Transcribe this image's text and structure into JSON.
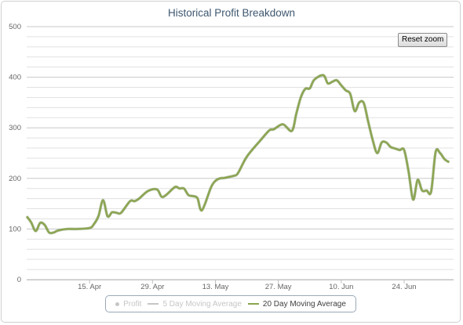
{
  "chart_data": {
    "type": "line",
    "title": "Historical Profit Breakdown",
    "xlabel": "",
    "ylabel": "",
    "ylim": [
      0,
      500
    ],
    "xlim": [
      "2013-04-01",
      "2013-07-05"
    ],
    "yticks": [
      0,
      100,
      200,
      300,
      400,
      500
    ],
    "xticks": [
      {
        "label": "15. Apr",
        "date": "2013-04-15"
      },
      {
        "label": "29. Apr",
        "date": "2013-04-29"
      },
      {
        "label": "13. May",
        "date": "2013-05-13"
      },
      {
        "label": "27. May",
        "date": "2013-05-27"
      },
      {
        "label": "10. Jun",
        "date": "2013-06-10"
      },
      {
        "label": "24. Jun",
        "date": "2013-06-24"
      }
    ],
    "grid": true,
    "legend_position": "bottom-center",
    "series": [
      {
        "name": "Profit",
        "visible": false,
        "color": "#c6c6c6",
        "symbol": "dot",
        "x": [],
        "y": []
      },
      {
        "name": "5 Day Moving Average",
        "visible": false,
        "color": "#c6c6c6",
        "symbol": "line",
        "x": [],
        "y": []
      },
      {
        "name": "20 Day Moving Average",
        "visible": true,
        "color": "#89a54e",
        "symbol": "line",
        "x": [
          "2013-04-01",
          "2013-04-02",
          "2013-04-03",
          "2013-04-04",
          "2013-04-05",
          "2013-04-06",
          "2013-04-07",
          "2013-04-08",
          "2013-04-10",
          "2013-04-12",
          "2013-04-15",
          "2013-04-16",
          "2013-04-17",
          "2013-04-18",
          "2013-04-19",
          "2013-04-20",
          "2013-04-21",
          "2013-04-22",
          "2013-04-24",
          "2013-04-25",
          "2013-04-26",
          "2013-04-28",
          "2013-04-30",
          "2013-05-01",
          "2013-05-02",
          "2013-05-04",
          "2013-05-05",
          "2013-05-06",
          "2013-05-07",
          "2013-05-08",
          "2013-05-09",
          "2013-05-10",
          "2013-05-12",
          "2013-05-13",
          "2013-05-14",
          "2013-05-15",
          "2013-05-16",
          "2013-05-17",
          "2013-05-18",
          "2013-05-20",
          "2013-05-23",
          "2013-05-25",
          "2013-05-26",
          "2013-05-28",
          "2013-05-30",
          "2013-05-31",
          "2013-06-01",
          "2013-06-02",
          "2013-06-03",
          "2013-06-04",
          "2013-06-06",
          "2013-06-07",
          "2013-06-08",
          "2013-06-09",
          "2013-06-10",
          "2013-06-11",
          "2013-06-12",
          "2013-06-13",
          "2013-06-14",
          "2013-06-15",
          "2013-06-16",
          "2013-06-17",
          "2013-06-18",
          "2013-06-19",
          "2013-06-20",
          "2013-06-21",
          "2013-06-22",
          "2013-06-23",
          "2013-06-24",
          "2013-06-25",
          "2013-06-26",
          "2013-06-27",
          "2013-06-28",
          "2013-06-29",
          "2013-06-30",
          "2013-07-01",
          "2013-07-02",
          "2013-07-03",
          "2013-07-04"
        ],
        "y": [
          125,
          113,
          96,
          112,
          108,
          93,
          93,
          97,
          100,
          100,
          102,
          110,
          126,
          157,
          125,
          133,
          132,
          132,
          155,
          155,
          160,
          175,
          178,
          164,
          167,
          183,
          180,
          180,
          167,
          165,
          161,
          137,
          182,
          195,
          200,
          201,
          203,
          205,
          210,
          243,
          275,
          295,
          297,
          307,
          294,
          328,
          360,
          377,
          378,
          395,
          404,
          388,
          391,
          394,
          384,
          374,
          367,
          333,
          350,
          349,
          312,
          276,
          250,
          271,
          271,
          262,
          259,
          256,
          256,
          213,
          158,
          197,
          176,
          176,
          174,
          252,
          250,
          238,
          232
        ]
      }
    ]
  },
  "ui": {
    "reset_zoom_label": "Reset zoom"
  }
}
